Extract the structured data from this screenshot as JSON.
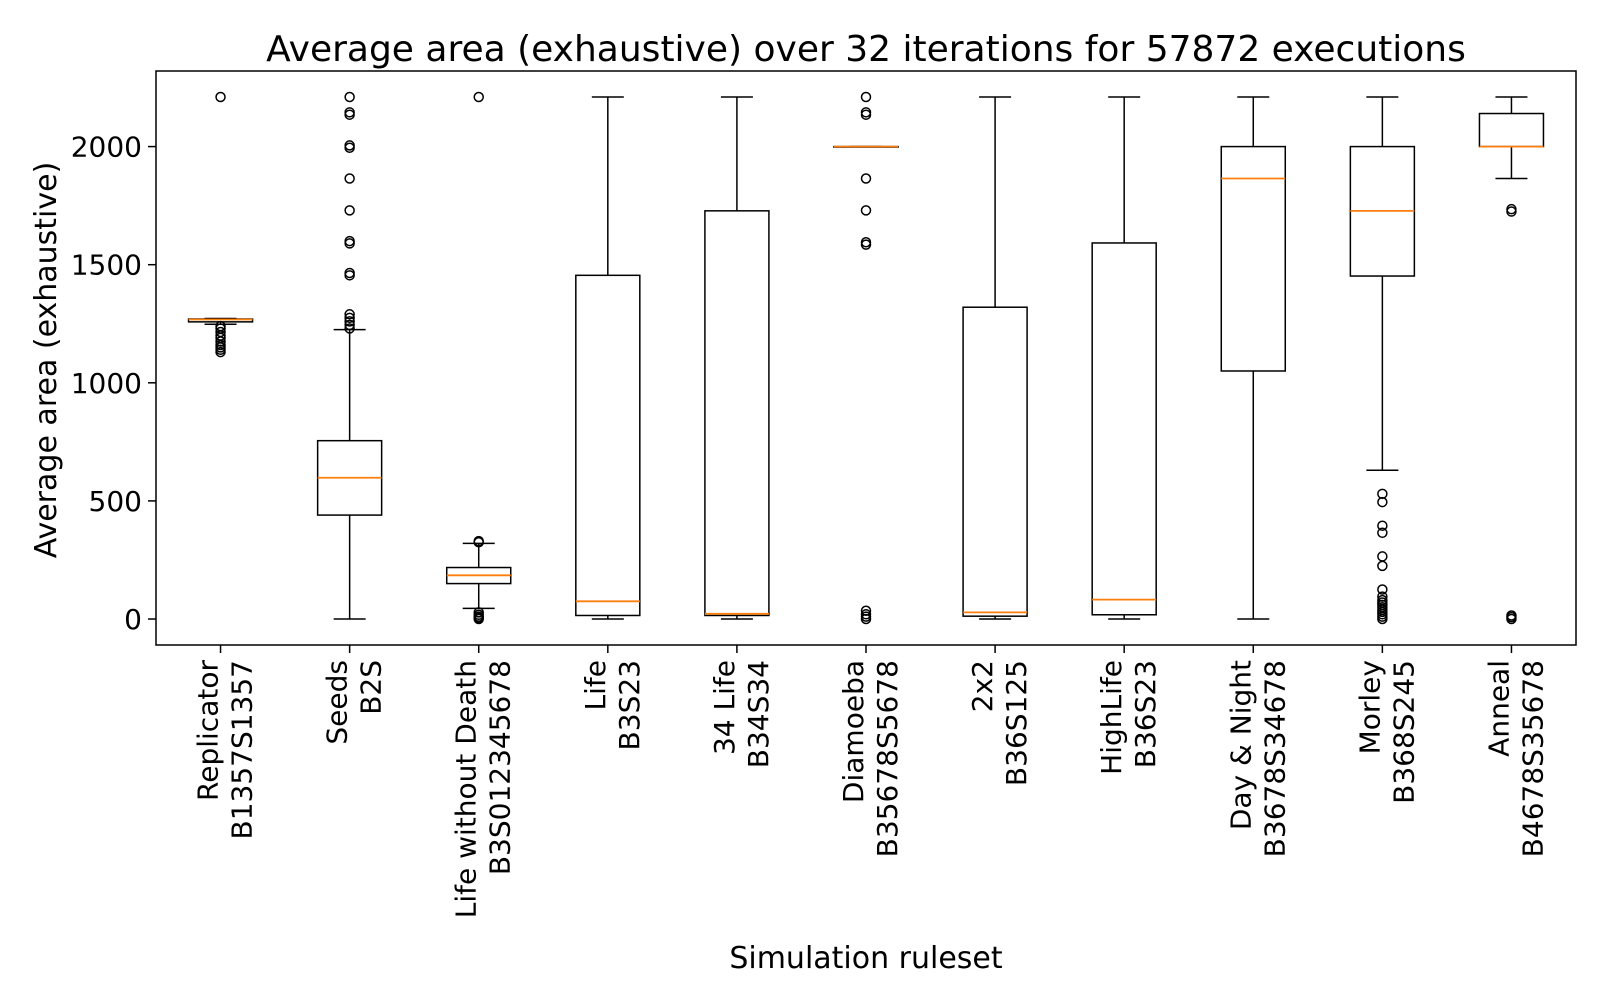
{
  "chart_data": {
    "type": "boxplot",
    "title": "Average area (exhaustive) over 32 iterations for 57872 executions",
    "xlabel": "Simulation ruleset",
    "ylabel": "Average area (exhaustive)",
    "ylim": [
      -110,
      2320
    ],
    "yticks": [
      0,
      500,
      1000,
      1500,
      2000
    ],
    "grid": false,
    "colors": {
      "box": "#000000",
      "median": "#ff7f0e",
      "outlier": "#000000"
    },
    "categories": [
      {
        "name": "Replicator",
        "rule": "B1357S1357"
      },
      {
        "name": "Seeds",
        "rule": "B2S"
      },
      {
        "name": "Life without Death",
        "rule": "B3S012345678"
      },
      {
        "name": "Life",
        "rule": "B3S23"
      },
      {
        "name": "34 Life",
        "rule": "B34S34"
      },
      {
        "name": "Diamoeba",
        "rule": "B35678S5678"
      },
      {
        "name": "2x2",
        "rule": "B36S125"
      },
      {
        "name": "HighLife",
        "rule": "B36S23"
      },
      {
        "name": "Day & Night",
        "rule": "B3678S34678"
      },
      {
        "name": "Morley",
        "rule": "B368S245"
      },
      {
        "name": "Anneal",
        "rule": "B4678S35678"
      }
    ],
    "boxes": [
      {
        "whisker_low": 1248,
        "q1": 1258,
        "median": 1268,
        "q3": 1270,
        "whisker_high": 1272,
        "outliers": [
          1130,
          1140,
          1150,
          1160,
          1175,
          1190,
          1200,
          1215,
          1230,
          1240,
          2210
        ]
      },
      {
        "whisker_low": 0,
        "q1": 440,
        "median": 598,
        "q3": 755,
        "whisker_high": 1225,
        "outliers": [
          1230,
          1245,
          1260,
          1275,
          1290,
          1455,
          1465,
          1590,
          1600,
          1730,
          1865,
          1995,
          2005,
          2135,
          2145,
          2210
        ]
      },
      {
        "whisker_low": 45,
        "q1": 150,
        "median": 185,
        "q3": 218,
        "whisker_high": 320,
        "outliers": [
          0,
          5,
          10,
          18,
          28,
          325,
          330,
          2210
        ]
      },
      {
        "whisker_low": 0,
        "q1": 15,
        "median": 75,
        "q3": 1455,
        "whisker_high": 2210,
        "outliers": []
      },
      {
        "whisker_low": 0,
        "q1": 15,
        "median": 22,
        "q3": 1728,
        "whisker_high": 2210,
        "outliers": []
      },
      {
        "whisker_low": 2000,
        "q1": 2000,
        "median": 2000,
        "q3": 2000,
        "whisker_high": 2000,
        "outliers": [
          0,
          10,
          20,
          35,
          1585,
          1595,
          1730,
          1865,
          2135,
          2145,
          2210
        ]
      },
      {
        "whisker_low": 0,
        "q1": 12,
        "median": 28,
        "q3": 1320,
        "whisker_high": 2210,
        "outliers": []
      },
      {
        "whisker_low": 0,
        "q1": 18,
        "median": 82,
        "q3": 1592,
        "whisker_high": 2210,
        "outliers": []
      },
      {
        "whisker_low": 0,
        "q1": 1050,
        "median": 1865,
        "q3": 2000,
        "whisker_high": 2210,
        "outliers": []
      },
      {
        "whisker_low": 630,
        "q1": 1452,
        "median": 1728,
        "q3": 2000,
        "whisker_high": 2210,
        "outliers": [
          0,
          10,
          20,
          30,
          40,
          50,
          60,
          70,
          80,
          95,
          125,
          225,
          265,
          365,
          395,
          495,
          530
        ]
      },
      {
        "whisker_low": 1865,
        "q1": 2000,
        "median": 2000,
        "q3": 2140,
        "whisker_high": 2210,
        "outliers": [
          0,
          8,
          15,
          1725,
          1735
        ]
      }
    ]
  }
}
